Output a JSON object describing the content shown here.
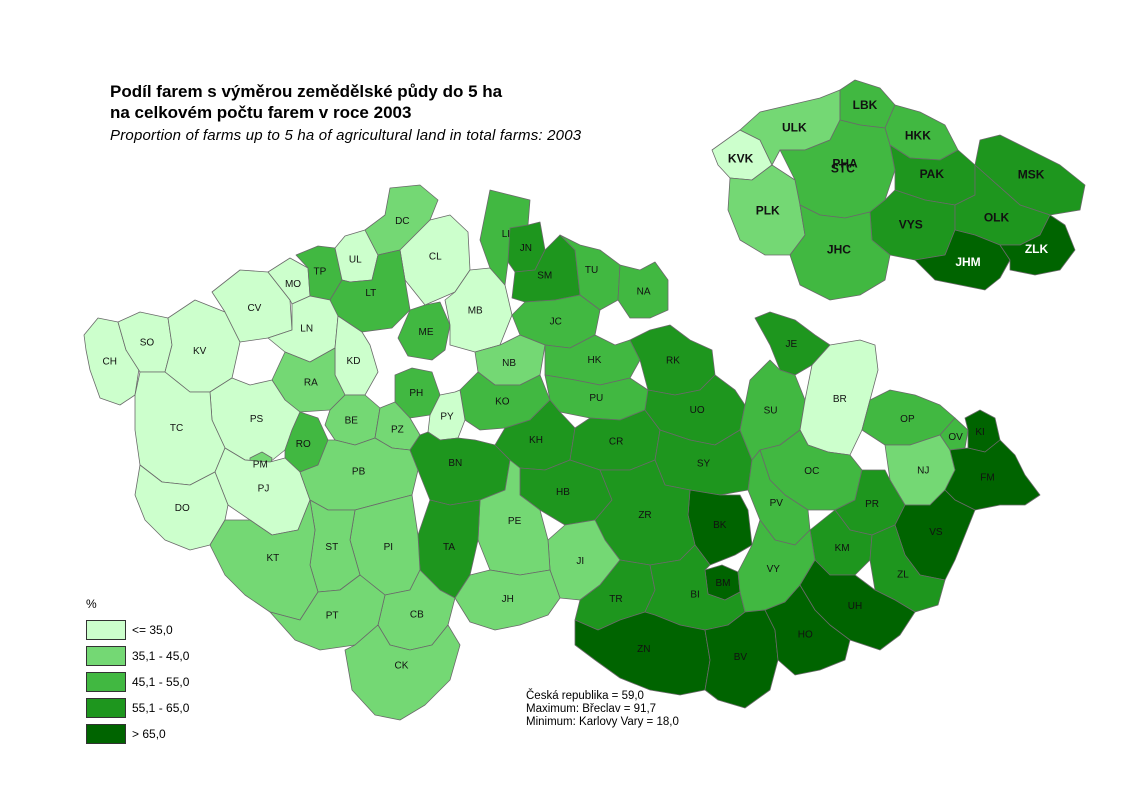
{
  "title": {
    "line1": "Podíl farem s výměrou zemědělské půdy do 5 ha",
    "line2": "na celkovém počtu farem v roce 2003",
    "subtitle": "Proportion of farms up to 5 ha of agricultural land in total farms: 2003"
  },
  "legend": {
    "title": "%",
    "classes": [
      {
        "label": "<= 35,0",
        "color": "#ccffcc"
      },
      {
        "label": "35,1 - 45,0",
        "color": "#74d874"
      },
      {
        "label": "45,1 - 55,0",
        "color": "#41b841"
      },
      {
        "label": "55,1 - 65,0",
        "color": "#1e961e"
      },
      {
        "label": "> 65,0",
        "color": "#006400"
      }
    ]
  },
  "stats": {
    "line1": "Česká republika = 59,0",
    "line2": "Maximum: Břeclav  = 91,7",
    "line3": "Minimum: Karlovy Vary  = 18,0"
  },
  "districts": [
    {
      "code": "CH",
      "cls": 0
    },
    {
      "code": "SO",
      "cls": 0
    },
    {
      "code": "KV",
      "cls": 0
    },
    {
      "code": "CV",
      "cls": 0
    },
    {
      "code": "MO",
      "cls": 0
    },
    {
      "code": "UL",
      "cls": 0
    },
    {
      "code": "TC",
      "cls": 0
    },
    {
      "code": "PS",
      "cls": 0
    },
    {
      "code": "PJ",
      "cls": 0
    },
    {
      "code": "DO",
      "cls": 0
    },
    {
      "code": "LN",
      "cls": 0
    },
    {
      "code": "KD",
      "cls": 0
    },
    {
      "code": "CL",
      "cls": 0
    },
    {
      "code": "MB",
      "cls": 0
    },
    {
      "code": "PY",
      "cls": 0
    },
    {
      "code": "BR",
      "cls": 0
    },
    {
      "code": "DC",
      "cls": 1
    },
    {
      "code": "RA",
      "cls": 1
    },
    {
      "code": "BE",
      "cls": 1
    },
    {
      "code": "PZ",
      "cls": 1
    },
    {
      "code": "NB",
      "cls": 1
    },
    {
      "code": "PB",
      "cls": 1
    },
    {
      "code": "PI",
      "cls": 1
    },
    {
      "code": "KT",
      "cls": 1
    },
    {
      "code": "CB",
      "cls": 1
    },
    {
      "code": "CK",
      "cls": 1
    },
    {
      "code": "PT",
      "cls": 1
    },
    {
      "code": "ST",
      "cls": 1
    },
    {
      "code": "PE",
      "cls": 1
    },
    {
      "code": "JI",
      "cls": 1
    },
    {
      "code": "JH",
      "cls": 1
    },
    {
      "code": "NJ",
      "cls": 1
    },
    {
      "code": "PM",
      "cls": 1
    },
    {
      "code": "TP",
      "cls": 2
    },
    {
      "code": "LT",
      "cls": 2
    },
    {
      "code": "ME",
      "cls": 2
    },
    {
      "code": "LI",
      "cls": 2
    },
    {
      "code": "TU",
      "cls": 2
    },
    {
      "code": "NA",
      "cls": 2
    },
    {
      "code": "JC",
      "cls": 2
    },
    {
      "code": "HK",
      "cls": 2
    },
    {
      "code": "PU",
      "cls": 2
    },
    {
      "code": "KO",
      "cls": 2
    },
    {
      "code": "PH",
      "cls": 2
    },
    {
      "code": "RO",
      "cls": 2
    },
    {
      "code": "SU",
      "cls": 2
    },
    {
      "code": "OP",
      "cls": 2
    },
    {
      "code": "OV",
      "cls": 2
    },
    {
      "code": "OC",
      "cls": 2
    },
    {
      "code": "VY",
      "cls": 2
    },
    {
      "code": "PV",
      "cls": 2
    },
    {
      "code": "JN",
      "cls": 3
    },
    {
      "code": "SM",
      "cls": 3
    },
    {
      "code": "RK",
      "cls": 3
    },
    {
      "code": "JE",
      "cls": 3
    },
    {
      "code": "UO",
      "cls": 3
    },
    {
      "code": "KH",
      "cls": 3
    },
    {
      "code": "CR",
      "cls": 3
    },
    {
      "code": "BN",
      "cls": 3
    },
    {
      "code": "HB",
      "cls": 3
    },
    {
      "code": "SY",
      "cls": 3
    },
    {
      "code": "TA",
      "cls": 3
    },
    {
      "code": "ZR",
      "cls": 3
    },
    {
      "code": "TR",
      "cls": 3
    },
    {
      "code": "BI",
      "cls": 3
    },
    {
      "code": "PR",
      "cls": 3
    },
    {
      "code": "KM",
      "cls": 3
    },
    {
      "code": "ZL",
      "cls": 3
    },
    {
      "code": "BK",
      "cls": 4
    },
    {
      "code": "BM",
      "cls": 4
    },
    {
      "code": "ZN",
      "cls": 4
    },
    {
      "code": "BV",
      "cls": 4
    },
    {
      "code": "HO",
      "cls": 4
    },
    {
      "code": "UH",
      "cls": 4
    },
    {
      "code": "VS",
      "cls": 4
    },
    {
      "code": "KI",
      "cls": 4
    },
    {
      "code": "FM",
      "cls": 4
    }
  ],
  "regions": [
    {
      "code": "KVK",
      "cls": 0
    },
    {
      "code": "ULK",
      "cls": 1
    },
    {
      "code": "LBK",
      "cls": 2
    },
    {
      "code": "HKK",
      "cls": 2
    },
    {
      "code": "PHA",
      "cls": 2
    },
    {
      "code": "STC",
      "cls": 2
    },
    {
      "code": "PLK",
      "cls": 1
    },
    {
      "code": "JHC",
      "cls": 2
    },
    {
      "code": "PAK",
      "cls": 3
    },
    {
      "code": "VYS",
      "cls": 3
    },
    {
      "code": "MSK",
      "cls": 3
    },
    {
      "code": "OLK",
      "cls": 3
    },
    {
      "code": "JHM",
      "cls": 4
    },
    {
      "code": "ZLK",
      "cls": 4
    }
  ]
}
